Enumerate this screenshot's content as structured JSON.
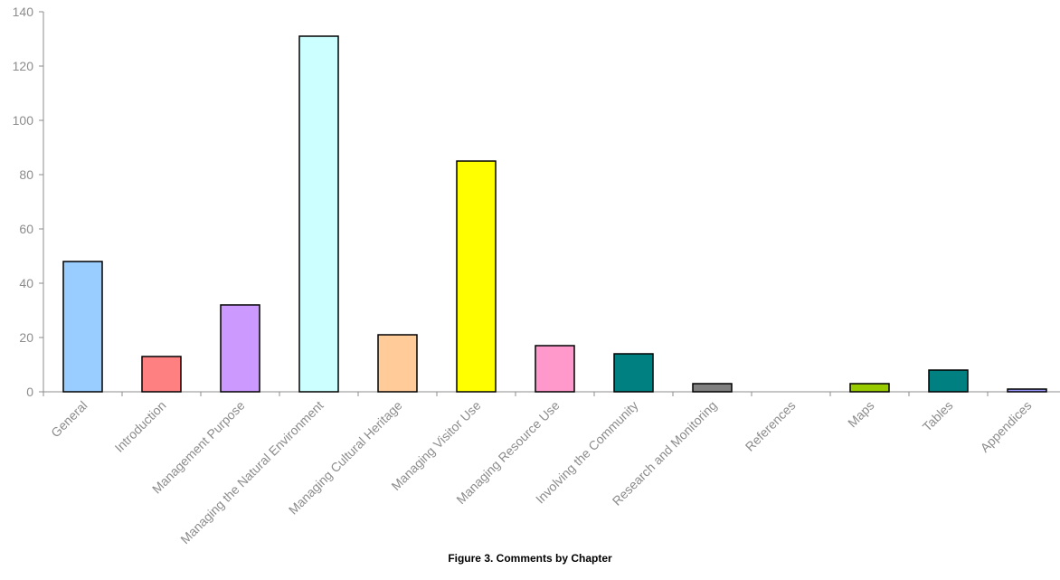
{
  "caption": "Figure 3. Comments by Chapter",
  "chart_data": {
    "type": "bar",
    "title": "Figure 3. Comments by Chapter",
    "xlabel": "",
    "ylabel": "",
    "ylim": [
      0,
      140
    ],
    "yticks": [
      0,
      20,
      40,
      60,
      80,
      100,
      120,
      140
    ],
    "grid": false,
    "categories": [
      "General",
      "Introduction",
      "Management Purpose",
      "Managing the Natural Environment",
      "Managing Cultural Heritage",
      "Managing Visitor Use",
      "Managing Resource Use",
      "Involving the Community",
      "Research and Monitoring",
      "References",
      "Maps",
      "Tables",
      "Appendices"
    ],
    "values": [
      48,
      13,
      32,
      131,
      21,
      85,
      17,
      14,
      3,
      0,
      3,
      8,
      1
    ],
    "colors": [
      "#99ccff",
      "#ff8080",
      "#cc99ff",
      "#ccffff",
      "#ffcc99",
      "#ffff00",
      "#ff99cc",
      "#008080",
      "#808080",
      "#ffffff",
      "#99cc00",
      "#008080",
      "#9999ff"
    ],
    "axis_color": "#8c8c8c",
    "bar_outline": "#000000"
  }
}
